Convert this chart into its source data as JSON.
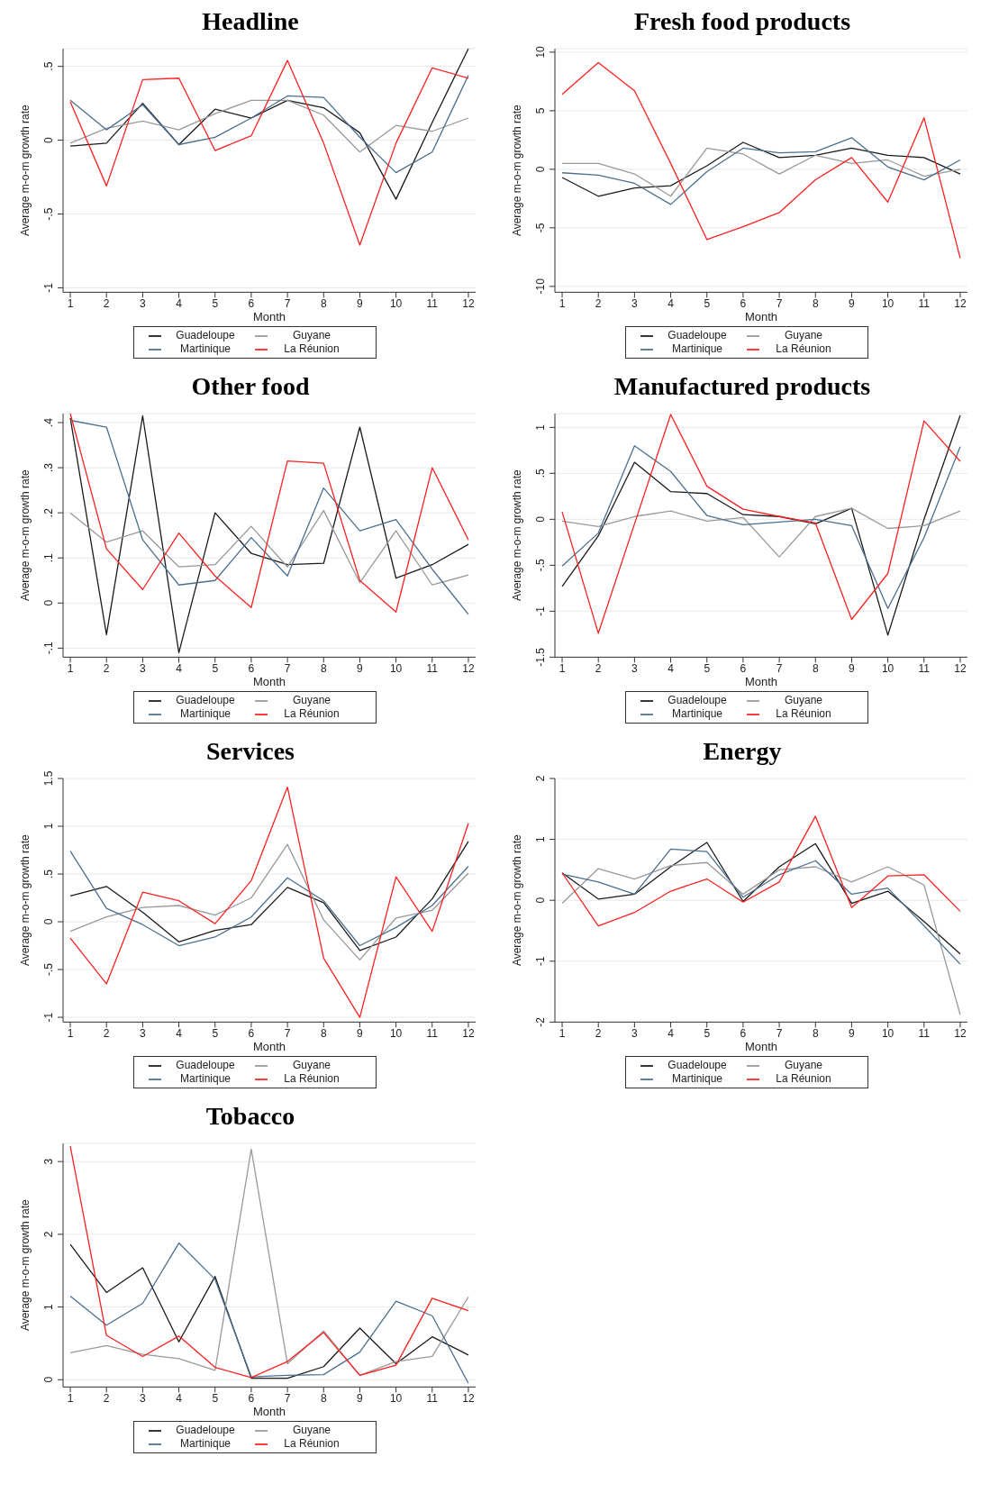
{
  "chart_data": [
    {
      "type": "line",
      "title": "Headline",
      "xlabel": "Month",
      "ylabel": "Average m-o-m growth rate",
      "x": [
        1,
        2,
        3,
        4,
        5,
        6,
        7,
        8,
        9,
        10,
        11,
        12
      ],
      "xlim": [
        0.8,
        12.2
      ],
      "xticks": [
        1,
        2,
        3,
        4,
        5,
        6,
        7,
        8,
        9,
        10,
        11,
        12
      ],
      "ylim": [
        -1.03,
        0.62
      ],
      "yticks": [
        -1,
        {
          "value": -0.5,
          "label": "-.5"
        },
        0,
        {
          "value": 0.5,
          "label": ".5"
        }
      ],
      "grid": "y",
      "legend": "bottom",
      "series": [
        {
          "name": "Guadeloupe",
          "color": "#1a1a1a",
          "values": [
            -0.04,
            -0.02,
            0.25,
            -0.03,
            0.21,
            0.15,
            0.27,
            0.22,
            0.05,
            -0.4,
            0.12,
            0.62
          ]
        },
        {
          "name": "Guyane",
          "color": "#999999",
          "values": [
            -0.02,
            0.08,
            0.13,
            0.07,
            0.18,
            0.27,
            0.27,
            0.17,
            -0.08,
            0.1,
            0.06,
            0.15
          ]
        },
        {
          "name": "Martinique",
          "color": "#4a6f8f",
          "values": [
            0.27,
            0.07,
            0.24,
            -0.03,
            0.02,
            0.15,
            0.3,
            0.29,
            0.02,
            -0.22,
            -0.08,
            0.44
          ]
        },
        {
          "name": "La Réunion",
          "color": "#ff2020",
          "values": [
            0.26,
            -0.31,
            0.41,
            0.42,
            -0.07,
            0.03,
            0.54,
            -0.02,
            -0.71,
            -0.02,
            0.49,
            0.42
          ]
        }
      ]
    },
    {
      "type": "line",
      "title": "Fresh food products",
      "xlabel": "Month",
      "ylabel": "Average m-o-m growth rate",
      "x": [
        1,
        2,
        3,
        4,
        5,
        6,
        7,
        8,
        9,
        10,
        11,
        12
      ],
      "xlim": [
        0.8,
        12.2
      ],
      "xticks": [
        1,
        2,
        3,
        4,
        5,
        6,
        7,
        8,
        9,
        10,
        11,
        12
      ],
      "ylim": [
        -10.5,
        10.3
      ],
      "yticks": [
        -10,
        -5,
        0,
        5,
        10
      ],
      "grid": "y",
      "legend": "bottom",
      "series": [
        {
          "name": "Guadeloupe",
          "color": "#1a1a1a",
          "values": [
            -0.7,
            -2.3,
            -1.6,
            -1.4,
            0.3,
            2.3,
            1.0,
            1.2,
            1.8,
            1.2,
            1.0,
            -0.4
          ]
        },
        {
          "name": "Guyane",
          "color": "#999999",
          "values": [
            0.5,
            0.5,
            -0.4,
            -2.3,
            1.8,
            1.3,
            -0.4,
            1.2,
            0.5,
            0.8,
            -0.6,
            0.0
          ]
        },
        {
          "name": "Martinique",
          "color": "#4a6f8f",
          "values": [
            -0.3,
            -0.5,
            -1.2,
            -3.0,
            -0.2,
            1.8,
            1.4,
            1.5,
            2.7,
            0.2,
            -0.9,
            0.8
          ]
        },
        {
          "name": "La Réunion",
          "color": "#ff2020",
          "values": [
            6.4,
            9.1,
            6.7,
            0.5,
            -6.0,
            -4.9,
            -3.7,
            -0.9,
            1.0,
            -2.8,
            4.4,
            -7.6
          ]
        }
      ]
    },
    {
      "type": "line",
      "title": "Other food",
      "xlabel": "Month",
      "ylabel": "Average m-o-m growth rate",
      "x": [
        1,
        2,
        3,
        4,
        5,
        6,
        7,
        8,
        9,
        10,
        11,
        12
      ],
      "xlim": [
        0.8,
        12.2
      ],
      "xticks": [
        1,
        2,
        3,
        4,
        5,
        6,
        7,
        8,
        9,
        10,
        11,
        12
      ],
      "ylim": [
        -0.12,
        0.42
      ],
      "yticks": [
        {
          "value": -0.1,
          "label": "-.1"
        },
        0,
        {
          "value": 0.1,
          "label": ".1"
        },
        {
          "value": 0.2,
          "label": ".2"
        },
        {
          "value": 0.3,
          "label": ".3"
        },
        {
          "value": 0.4,
          "label": ".4"
        }
      ],
      "grid": "y",
      "legend": "bottom",
      "series": [
        {
          "name": "Guadeloupe",
          "color": "#1a1a1a",
          "values": [
            0.41,
            -0.07,
            0.415,
            -0.11,
            0.2,
            0.11,
            0.085,
            0.088,
            0.39,
            0.055,
            0.085,
            0.13
          ]
        },
        {
          "name": "Guyane",
          "color": "#999999",
          "values": [
            0.2,
            0.135,
            0.16,
            0.08,
            0.085,
            0.17,
            0.08,
            0.205,
            0.045,
            0.16,
            0.04,
            0.062
          ]
        },
        {
          "name": "Martinique",
          "color": "#4a6f8f",
          "values": [
            0.405,
            0.39,
            0.14,
            0.04,
            0.05,
            0.145,
            0.06,
            0.255,
            0.16,
            0.185,
            0.075,
            -0.025
          ]
        },
        {
          "name": "La Réunion",
          "color": "#ff2020",
          "values": [
            0.42,
            0.12,
            0.03,
            0.155,
            0.06,
            -0.01,
            0.315,
            0.31,
            0.05,
            -0.02,
            0.3,
            0.14
          ]
        }
      ]
    },
    {
      "type": "line",
      "title": "Manufactured products",
      "xlabel": "Month",
      "ylabel": "Average m-o-m growth rate",
      "x": [
        1,
        2,
        3,
        4,
        5,
        6,
        7,
        8,
        9,
        10,
        11,
        12
      ],
      "xlim": [
        0.8,
        12.2
      ],
      "xticks": [
        1,
        2,
        3,
        4,
        5,
        6,
        7,
        8,
        9,
        10,
        11,
        12
      ],
      "ylim": [
        -1.5,
        1.15
      ],
      "yticks": [
        {
          "value": -1.5,
          "label": "-1.5"
        },
        -1,
        {
          "value": -0.5,
          "label": "-.5"
        },
        0,
        {
          "value": 0.5,
          "label": ".5"
        },
        1
      ],
      "grid": "y",
      "legend": "bottom",
      "series": [
        {
          "name": "Guadeloupe",
          "color": "#1a1a1a",
          "values": [
            -0.73,
            -0.18,
            0.62,
            0.3,
            0.28,
            0.05,
            0.03,
            -0.05,
            0.12,
            -1.26,
            0.0,
            1.13
          ]
        },
        {
          "name": "Guyane",
          "color": "#999999",
          "values": [
            -0.02,
            -0.08,
            0.03,
            0.09,
            -0.02,
            0.02,
            -0.41,
            0.03,
            0.12,
            -0.1,
            -0.07,
            0.09
          ]
        },
        {
          "name": "Martinique",
          "color": "#4a6f8f",
          "values": [
            -0.51,
            -0.15,
            0.8,
            0.52,
            0.04,
            -0.06,
            -0.03,
            0.0,
            -0.07,
            -0.97,
            -0.2,
            0.79
          ]
        },
        {
          "name": "La Réunion",
          "color": "#ff2020",
          "values": [
            0.08,
            -1.24,
            -0.05,
            1.14,
            0.36,
            0.11,
            0.03,
            -0.04,
            -1.09,
            -0.59,
            1.07,
            0.63
          ]
        }
      ]
    },
    {
      "type": "line",
      "title": "Services",
      "xlabel": "Month",
      "ylabel": "Average m-o-m growth rate",
      "x": [
        1,
        2,
        3,
        4,
        5,
        6,
        7,
        8,
        9,
        10,
        11,
        12
      ],
      "xlim": [
        0.8,
        12.2
      ],
      "xticks": [
        1,
        2,
        3,
        4,
        5,
        6,
        7,
        8,
        9,
        10,
        11,
        12
      ],
      "ylim": [
        -1.05,
        1.5
      ],
      "yticks": [
        -1,
        {
          "value": -0.5,
          "label": "-.5"
        },
        0,
        {
          "value": 0.5,
          "label": ".5"
        },
        1,
        {
          "value": 1.5,
          "label": "1.5"
        }
      ],
      "grid": "y",
      "legend": "bottom",
      "series": [
        {
          "name": "Guadeloupe",
          "color": "#1a1a1a",
          "values": [
            0.27,
            0.37,
            0.1,
            -0.21,
            -0.09,
            -0.03,
            0.36,
            0.2,
            -0.3,
            -0.16,
            0.24,
            0.84
          ]
        },
        {
          "name": "Guyane",
          "color": "#999999",
          "values": [
            -0.1,
            0.05,
            0.15,
            0.17,
            0.07,
            0.25,
            0.81,
            0.02,
            -0.4,
            0.04,
            0.12,
            0.51
          ]
        },
        {
          "name": "Martinique",
          "color": "#4a6f8f",
          "values": [
            0.74,
            0.14,
            -0.03,
            -0.25,
            -0.16,
            0.05,
            0.46,
            0.22,
            -0.25,
            -0.06,
            0.17,
            0.58
          ]
        },
        {
          "name": "La Réunion",
          "color": "#ff2020",
          "values": [
            -0.17,
            -0.65,
            0.31,
            0.22,
            -0.02,
            0.43,
            1.41,
            -0.38,
            -1.0,
            0.47,
            -0.1,
            1.03
          ]
        }
      ]
    },
    {
      "type": "line",
      "title": "Energy",
      "xlabel": "Month",
      "ylabel": "Average m-o-m growth rate",
      "x": [
        1,
        2,
        3,
        4,
        5,
        6,
        7,
        8,
        9,
        10,
        11,
        12
      ],
      "xlim": [
        0.8,
        12.2
      ],
      "xticks": [
        1,
        2,
        3,
        4,
        5,
        6,
        7,
        8,
        9,
        10,
        11,
        12
      ],
      "ylim": [
        -2,
        2
      ],
      "yticks": [
        -2,
        -1,
        0,
        1,
        2
      ],
      "grid": "y",
      "legend": "bottom",
      "series": [
        {
          "name": "Guadeloupe",
          "color": "#1a1a1a",
          "values": [
            0.45,
            0.02,
            0.1,
            0.55,
            0.95,
            -0.02,
            0.55,
            0.93,
            -0.05,
            0.15,
            -0.35,
            -0.88
          ]
        },
        {
          "name": "Guyane",
          "color": "#999999",
          "values": [
            -0.05,
            0.52,
            0.35,
            0.57,
            0.62,
            0.1,
            0.5,
            0.55,
            0.3,
            0.55,
            0.25,
            -1.88
          ]
        },
        {
          "name": "Martinique",
          "color": "#4a6f8f",
          "values": [
            0.43,
            0.3,
            0.1,
            0.84,
            0.8,
            0.05,
            0.42,
            0.65,
            0.1,
            0.2,
            -0.42,
            -1.05
          ]
        },
        {
          "name": "La Réunion",
          "color": "#ff2020",
          "values": [
            0.45,
            -0.42,
            -0.2,
            0.15,
            0.35,
            -0.03,
            0.3,
            1.38,
            -0.12,
            0.4,
            0.42,
            -0.18
          ]
        }
      ]
    },
    {
      "type": "line",
      "title": "Tobacco",
      "xlabel": "Month",
      "ylabel": "Average m-o-m growth rate",
      "x": [
        1,
        2,
        3,
        4,
        5,
        6,
        7,
        8,
        9,
        10,
        11,
        12
      ],
      "xlim": [
        0.8,
        12.2
      ],
      "xticks": [
        1,
        2,
        3,
        4,
        5,
        6,
        7,
        8,
        9,
        10,
        11,
        12
      ],
      "ylim": [
        -0.1,
        3.25
      ],
      "yticks": [
        0,
        1,
        2,
        3
      ],
      "grid": "y",
      "legend": "bottom",
      "series": [
        {
          "name": "Guadeloupe",
          "color": "#1a1a1a",
          "values": [
            1.86,
            1.2,
            1.54,
            0.52,
            1.42,
            0.02,
            0.02,
            0.18,
            0.71,
            0.22,
            0.59,
            0.34
          ]
        },
        {
          "name": "Guyane",
          "color": "#999999",
          "values": [
            0.37,
            0.47,
            0.35,
            0.29,
            0.13,
            3.17,
            0.22,
            0.67,
            0.06,
            0.25,
            0.32,
            1.14
          ]
        },
        {
          "name": "Martinique",
          "color": "#4a6f8f",
          "values": [
            1.15,
            0.75,
            1.05,
            1.88,
            1.38,
            0.04,
            0.06,
            0.07,
            0.38,
            1.08,
            0.88,
            -0.05
          ]
        },
        {
          "name": "La Réunion",
          "color": "#ff2020",
          "values": [
            3.21,
            0.61,
            0.32,
            0.6,
            0.17,
            0.03,
            0.25,
            0.65,
            0.06,
            0.2,
            1.12,
            0.95
          ]
        }
      ]
    }
  ]
}
